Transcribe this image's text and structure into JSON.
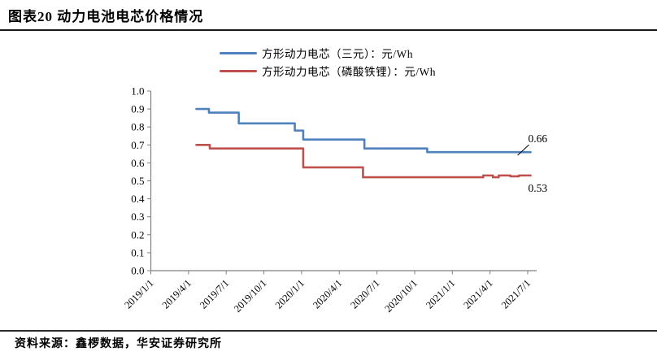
{
  "header": {
    "title": "图表20 动力电池电芯价格情况"
  },
  "footer": {
    "source": "资料来源：鑫椤数据，华安证券研究所"
  },
  "chart_data": {
    "type": "line",
    "title": "动力电池电芯价格情况",
    "unit": "元/Wh",
    "grid": false,
    "legend_position": "top-center",
    "ylim": [
      0.0,
      1.0
    ],
    "y_step": 0.1,
    "y_tick_labels": [
      "0.0",
      "0.1",
      "0.2",
      "0.3",
      "0.4",
      "0.5",
      "0.6",
      "0.7",
      "0.8",
      "0.9",
      "1.0"
    ],
    "x_ticks": [
      "2019/1/1",
      "2019/4/1",
      "2019/7/1",
      "2019/10/1",
      "2020/1/1",
      "2020/4/1",
      "2020/7/1",
      "2020/10/1",
      "2021/1/1",
      "2021/4/1",
      "2021/7/1"
    ],
    "axis_color": "#808080",
    "label_color": "#000000",
    "series": [
      {
        "name": "方形动力电芯（三元）：元/Wh",
        "color": "#4F81BD",
        "end_label": "0.66",
        "end_label_pos": "above",
        "step_points": [
          [
            "2019/4/20",
            0.9
          ],
          [
            "2019/5/20",
            0.88
          ],
          [
            "2019/8/1",
            0.82
          ],
          [
            "2019/12/15",
            0.78
          ],
          [
            "2020/1/5",
            0.73
          ],
          [
            "2020/6/1",
            0.68
          ],
          [
            "2020/11/1",
            0.66
          ],
          [
            "2021/7/8",
            0.66
          ]
        ]
      },
      {
        "name": "方形动力电芯（磷酸铁锂）：元/Wh",
        "color": "#C0504D",
        "end_label": "0.53",
        "end_label_pos": "below",
        "step_points": [
          [
            "2019/4/20",
            0.7
          ],
          [
            "2019/5/22",
            0.68
          ],
          [
            "2020/1/5",
            0.575
          ],
          [
            "2020/5/28",
            0.52
          ],
          [
            "2021/3/15",
            0.53
          ],
          [
            "2021/4/8",
            0.52
          ],
          [
            "2021/4/22",
            0.53
          ],
          [
            "2021/5/20",
            0.525
          ],
          [
            "2021/6/10",
            0.53
          ],
          [
            "2021/7/8",
            0.53
          ]
        ]
      }
    ]
  }
}
